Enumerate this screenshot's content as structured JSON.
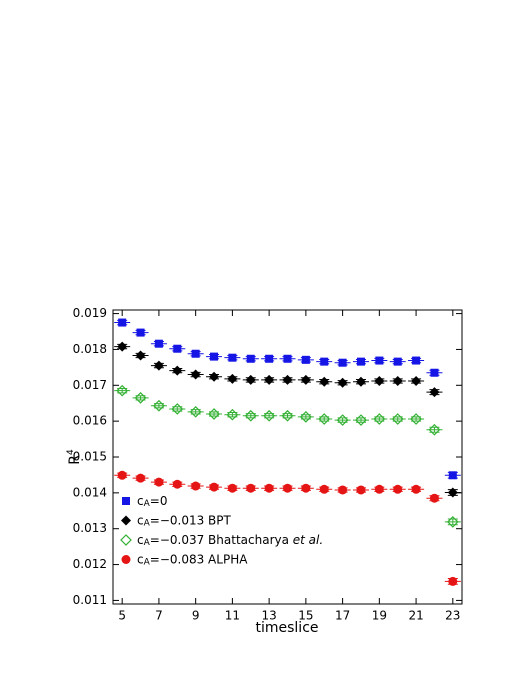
{
  "chart_data": {
    "type": "scatter",
    "xlabel": "timeslice",
    "ylabel": [
      {
        "text": "R"
      },
      {
        "text": "4",
        "style": "sup"
      }
    ],
    "xlim": [
      4.5,
      23.5
    ],
    "xticks": [
      5,
      7,
      9,
      11,
      13,
      15,
      17,
      19,
      21,
      23
    ],
    "ylim": [
      0.0109,
      0.0191
    ],
    "yticks": [
      0.011,
      0.012,
      0.013,
      0.014,
      0.015,
      0.016,
      0.017,
      0.018,
      0.019
    ],
    "x": [
      5,
      6,
      7,
      8,
      9,
      10,
      11,
      12,
      13,
      14,
      15,
      16,
      17,
      18,
      19,
      20,
      21,
      22,
      23
    ],
    "series": [
      {
        "name": [
          {
            "text": "c"
          },
          {
            "text": "A",
            "style": "sub"
          },
          {
            "text": "=0"
          }
        ],
        "color": "#1515e6",
        "marker": "square",
        "values": [
          0.01875,
          0.01847,
          0.01816,
          0.01802,
          0.01788,
          0.0178,
          0.01777,
          0.01774,
          0.01774,
          0.01774,
          0.01771,
          0.01766,
          0.01763,
          0.01766,
          0.01769,
          0.01766,
          0.01769,
          0.01735,
          0.01449
        ],
        "errors": [
          6e-05,
          6e-05,
          6e-05,
          6e-05,
          6e-05,
          6e-05,
          6e-05,
          6e-05,
          6e-05,
          6e-05,
          6e-05,
          6e-05,
          6e-05,
          6e-05,
          6e-05,
          6e-05,
          6e-05,
          7e-05,
          8e-05
        ]
      },
      {
        "name": [
          {
            "text": "c"
          },
          {
            "text": "A",
            "style": "sub"
          },
          {
            "text": "=−0.013 BPT"
          }
        ],
        "color": "#000000",
        "marker": "diamond",
        "values": [
          0.01808,
          0.01783,
          0.01755,
          0.01741,
          0.0173,
          0.01724,
          0.01718,
          0.01715,
          0.01715,
          0.01715,
          0.01715,
          0.0171,
          0.01707,
          0.0171,
          0.01712,
          0.01712,
          0.01712,
          0.01681,
          0.01401
        ],
        "errors": [
          6e-05,
          6e-05,
          6e-05,
          6e-05,
          6e-05,
          6e-05,
          6e-05,
          6e-05,
          6e-05,
          6e-05,
          6e-05,
          6e-05,
          6e-05,
          6e-05,
          6e-05,
          6e-05,
          6e-05,
          7e-05,
          8e-05
        ]
      },
      {
        "name": [
          {
            "text": "c"
          },
          {
            "text": "A",
            "style": "sub"
          },
          {
            "text": "=−0.037 Bhattacharya "
          },
          {
            "text": "et al.",
            "style": "italic"
          }
        ],
        "color": "#33b033",
        "marker": "open-diamond",
        "values": [
          0.01685,
          0.01665,
          0.01643,
          0.01634,
          0.01626,
          0.0162,
          0.01618,
          0.01615,
          0.01615,
          0.01615,
          0.01612,
          0.01606,
          0.01603,
          0.01603,
          0.01606,
          0.01606,
          0.01606,
          0.01576,
          0.01319
        ],
        "errors": [
          6e-05,
          6e-05,
          6e-05,
          6e-05,
          6e-05,
          6e-05,
          6e-05,
          6e-05,
          6e-05,
          6e-05,
          6e-05,
          6e-05,
          6e-05,
          6e-05,
          6e-05,
          6e-05,
          6e-05,
          7e-05,
          8e-05
        ]
      },
      {
        "name": [
          {
            "text": "c"
          },
          {
            "text": "A",
            "style": "sub"
          },
          {
            "text": "=−0.083 ALPHA"
          }
        ],
        "color": "#e61515",
        "marker": "circle",
        "values": [
          0.01449,
          0.01441,
          0.0143,
          0.01424,
          0.01419,
          0.01416,
          0.01413,
          0.01413,
          0.01413,
          0.01413,
          0.01413,
          0.0141,
          0.01408,
          0.01408,
          0.0141,
          0.0141,
          0.0141,
          0.01385,
          0.01153
        ],
        "errors": [
          6e-05,
          6e-05,
          6e-05,
          6e-05,
          6e-05,
          6e-05,
          6e-05,
          6e-05,
          6e-05,
          6e-05,
          6e-05,
          6e-05,
          6e-05,
          6e-05,
          6e-05,
          6e-05,
          6e-05,
          7e-05,
          8e-05
        ]
      }
    ]
  }
}
